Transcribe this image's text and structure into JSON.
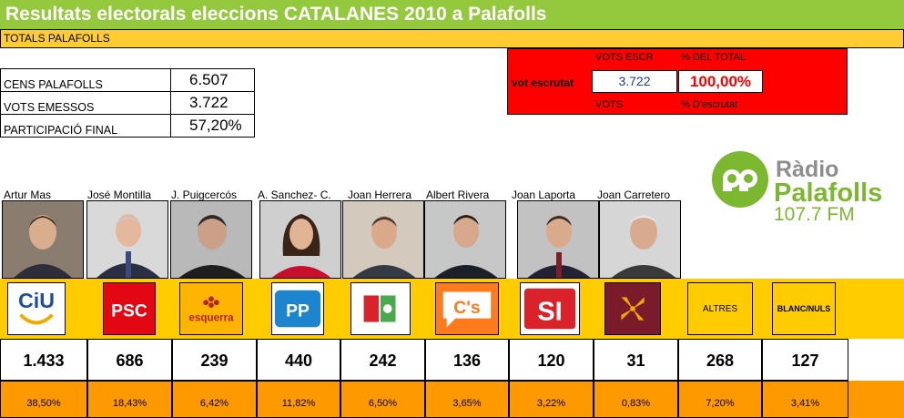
{
  "header": {
    "title": "Resultats electorals eleccions CATALANES 2010 a Palafolls",
    "totals": "TOTALS PALAFOLLS"
  },
  "stats": [
    {
      "label": "CENS PALAFOLLS",
      "value": "6.507"
    },
    {
      "label": "VOTS EMESSOS",
      "value": "3.722"
    },
    {
      "label": "PARTICIPACIÓ FINAL",
      "value": "57,20%"
    }
  ],
  "scrutiny": {
    "label": "vot escrutat",
    "col1_header": "VOTS ESCR",
    "col2_header": "% DEL TOTAL",
    "col1_value": "3.722",
    "col2_value": "100,00%",
    "col1_footer": "VOTS",
    "col2_footer": "% D'escrutat"
  },
  "radio": {
    "line1": "Ràdio",
    "line2": "Palafolls",
    "line3": "107.7 FM"
  },
  "candidates": [
    {
      "name": "Artur Mas"
    },
    {
      "name": "José Montilla"
    },
    {
      "name": "J. Puigcercós"
    },
    {
      "name": "A. Sanchez- C."
    },
    {
      "name": "Joan Herrera"
    },
    {
      "name": "Albert Rivera"
    },
    {
      "name": "Joan Laporta"
    },
    {
      "name": "Joan Carretero"
    }
  ],
  "parties": [
    {
      "label": "CiU",
      "votes": "1.433",
      "pct": "38,50%"
    },
    {
      "label": "PSC",
      "votes": "686",
      "pct": "18,43%"
    },
    {
      "label": "esquerra",
      "votes": "239",
      "pct": "6,42%"
    },
    {
      "label": "PP",
      "votes": "440",
      "pct": "11,82%"
    },
    {
      "label": "ICV-EUiA",
      "votes": "242",
      "pct": "6,50%"
    },
    {
      "label": "C's",
      "votes": "136",
      "pct": "3,65%"
    },
    {
      "label": "SI",
      "votes": "120",
      "pct": "3,22%"
    },
    {
      "label": "Reagrupament",
      "votes": "31",
      "pct": "0,83%"
    },
    {
      "label": "ALTRES",
      "votes": "268",
      "pct": "7,20%"
    },
    {
      "label": "BLANC/NULS",
      "votes": "127",
      "pct": "3,41%"
    }
  ]
}
